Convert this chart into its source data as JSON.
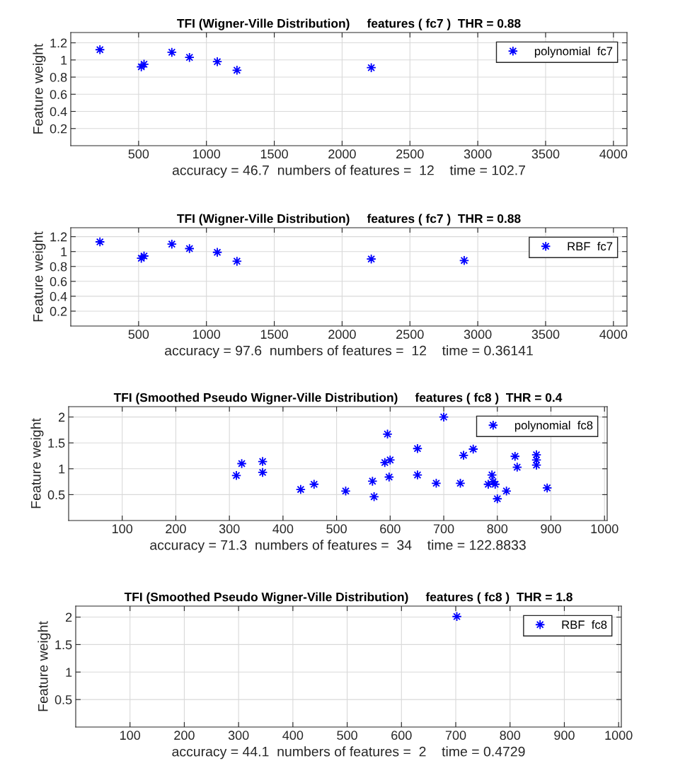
{
  "chart_data": [
    {
      "type": "scatter",
      "title": "TFI (Wigner-Ville Distribution)     features ( fc7 )  THR = 0.88",
      "xlabel": "accuracy = 46.7  numbers of features =  12    time = 102.7",
      "ylabel": "Feature weight",
      "series": [
        {
          "name": "polynomial  fc7",
          "color": "#0000ff",
          "x": [
            215,
            510,
            520,
            540,
            745,
            875,
            1080,
            1225,
            2215
          ],
          "values": [
            1.12,
            null,
            0.92,
            0.95,
            1.09,
            1.03,
            0.98,
            0.88,
            0.91
          ]
        }
      ],
      "xlim": [
        0,
        4100
      ],
      "ylim": [
        0,
        1.32
      ],
      "xticks": [
        500,
        1000,
        1500,
        2000,
        2500,
        3000,
        3500,
        4000
      ],
      "yticks": [
        0.2,
        0.4,
        0.6,
        0.8,
        1,
        1.2
      ],
      "grid": true,
      "legend": "top right",
      "marker": "star"
    },
    {
      "type": "scatter",
      "title": "TFI (Wigner-Ville Distribution)     features ( fc7 )  THR = 0.88",
      "xlabel": "accuracy = 97.6  numbers of features =  12    time = 0.36141",
      "ylabel": "Feature weight",
      "series": [
        {
          "name": "RBF  fc7",
          "color": "#0000ff",
          "x": [
            215,
            510,
            520,
            540,
            745,
            875,
            1080,
            1225,
            2215,
            2900
          ],
          "values": [
            1.13,
            null,
            0.91,
            0.94,
            1.1,
            1.04,
            0.99,
            0.87,
            0.9,
            0.88
          ]
        }
      ],
      "xlim": [
        0,
        4100
      ],
      "ylim": [
        0,
        1.32
      ],
      "xticks": [
        500,
        1000,
        1500,
        2000,
        2500,
        3000,
        3500,
        4000
      ],
      "yticks": [
        0.2,
        0.4,
        0.6,
        0.8,
        1,
        1.2
      ],
      "grid": true,
      "legend": "top right",
      "marker": "star"
    },
    {
      "type": "scatter",
      "title": "TFI (Smoothed Pseudo Wigner-Ville Distribution)     features ( fc8 )  THR = 0.4",
      "xlabel": "accuracy = 71.3  numbers of features =  34    time = 122.8833",
      "ylabel": "Feature weight",
      "series": [
        {
          "name": "polynomial  fc8",
          "color": "#0000ff",
          "x": [
            313,
            323,
            362,
            362,
            433,
            458,
            517,
            567,
            570,
            590,
            595,
            600,
            598,
            651,
            651,
            686,
            700,
            731,
            737,
            755,
            783,
            790,
            792,
            796,
            800,
            817,
            833,
            837,
            873,
            873,
            873,
            893
          ],
          "values": [
            0.87,
            1.1,
            1.14,
            0.93,
            0.6,
            0.7,
            0.57,
            0.76,
            0.46,
            1.12,
            1.67,
            1.17,
            0.84,
            1.39,
            0.88,
            0.72,
            2.0,
            0.72,
            1.26,
            1.38,
            0.7,
            0.88,
            0.75,
            0.7,
            0.42,
            0.57,
            1.24,
            1.03,
            1.27,
            1.17,
            1.07,
            0.63
          ]
        }
      ],
      "xlim": [
        0,
        1005
      ],
      "ylim": [
        0,
        2.2
      ],
      "xticks": [
        100,
        200,
        300,
        400,
        500,
        600,
        700,
        800,
        900,
        1000
      ],
      "yticks": [
        0.5,
        1,
        1.5,
        2
      ],
      "grid": true,
      "legend": "top right",
      "marker": "star"
    },
    {
      "type": "scatter",
      "title": "TFI (Smoothed Pseudo Wigner-Ville Distribution)     features ( fc8 )  THR = 1.8",
      "xlabel": "accuracy = 44.1  numbers of features =  2    time = 0.4729",
      "ylabel": "Feature weight",
      "series": [
        {
          "name": "RBF  fc8",
          "color": "#0000ff",
          "x": [
            702
          ],
          "values": [
            2.01
          ]
        }
      ],
      "xlim": [
        0,
        1005
      ],
      "ylim": [
        0,
        2.2
      ],
      "xticks": [
        100,
        200,
        300,
        400,
        500,
        600,
        700,
        800,
        900,
        1000
      ],
      "yticks": [
        0.5,
        1,
        1.5,
        2
      ],
      "grid": true,
      "legend": "top right",
      "marker": "star"
    }
  ]
}
